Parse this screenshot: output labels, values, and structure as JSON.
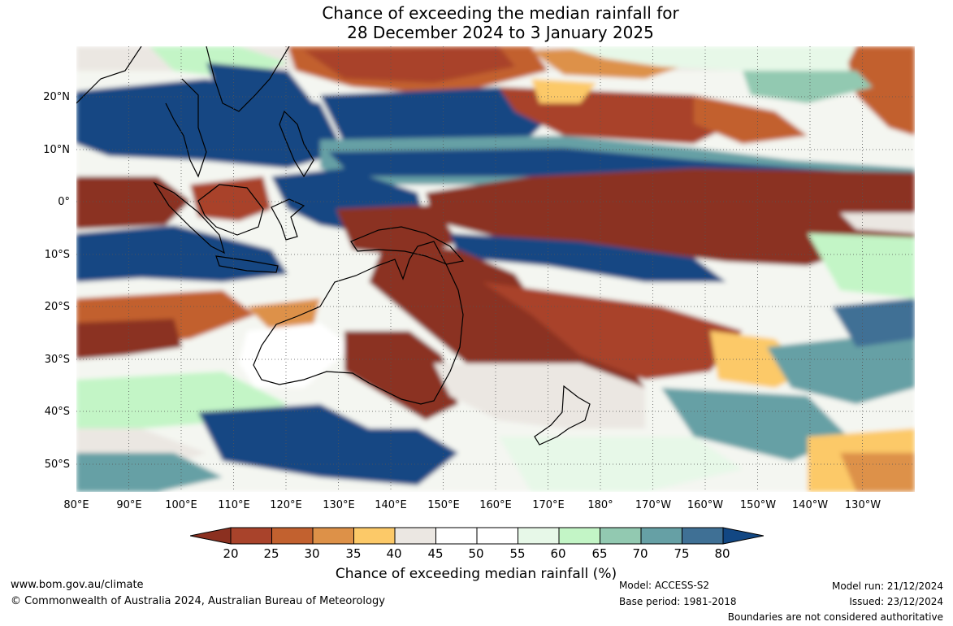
{
  "header": {
    "title_line1": "Chance of exceeding the median rainfall for",
    "title_line2": "28 December 2024 to 3 January 2025"
  },
  "map": {
    "lat_labels": [
      "20°N",
      "10°N",
      "0°",
      "10°S",
      "20°S",
      "30°S",
      "40°S",
      "50°S"
    ],
    "lon_labels": [
      "80°E",
      "90°E",
      "100°E",
      "110°E",
      "120°E",
      "130°E",
      "140°E",
      "150°E",
      "160°E",
      "170°E",
      "180°",
      "170°W",
      "160°W",
      "150°W",
      "140°W",
      "130°W"
    ],
    "extent": {
      "lon_min": 80,
      "lon_max": 240,
      "lat_min": -55,
      "lat_max": 30
    },
    "colors": {
      "ocean_base": "#ffffff",
      "coastline": "#000000",
      "gridline": "#555555"
    }
  },
  "legend": {
    "title": "Chance of exceeding median rainfall (%)",
    "ticks": [
      "20",
      "25",
      "30",
      "35",
      "40",
      "45",
      "50",
      "55",
      "60",
      "65",
      "70",
      "75",
      "80"
    ],
    "colors": [
      "#8b3020",
      "#a9432b",
      "#c2612f",
      "#dd9148",
      "#fcc968",
      "#ebe7e2",
      "#ffffff",
      "#ffffff",
      "#e7f8e8",
      "#c3f5c6",
      "#92c9b1",
      "#66a0a5",
      "#3f7095",
      "#124783"
    ]
  },
  "footer": {
    "url": "www.bom.gov.au/climate",
    "copyright": "© Commonwealth of Australia 2024, Australian Bureau of Meteorology",
    "model": "Model: ACCESS-S2",
    "base_period": "Base period: 1981-2018",
    "model_run": "Model run: 21/12/2024",
    "issued": "Issued: 23/12/2024",
    "disclaimer": "Boundaries are not considered authoritative"
  }
}
